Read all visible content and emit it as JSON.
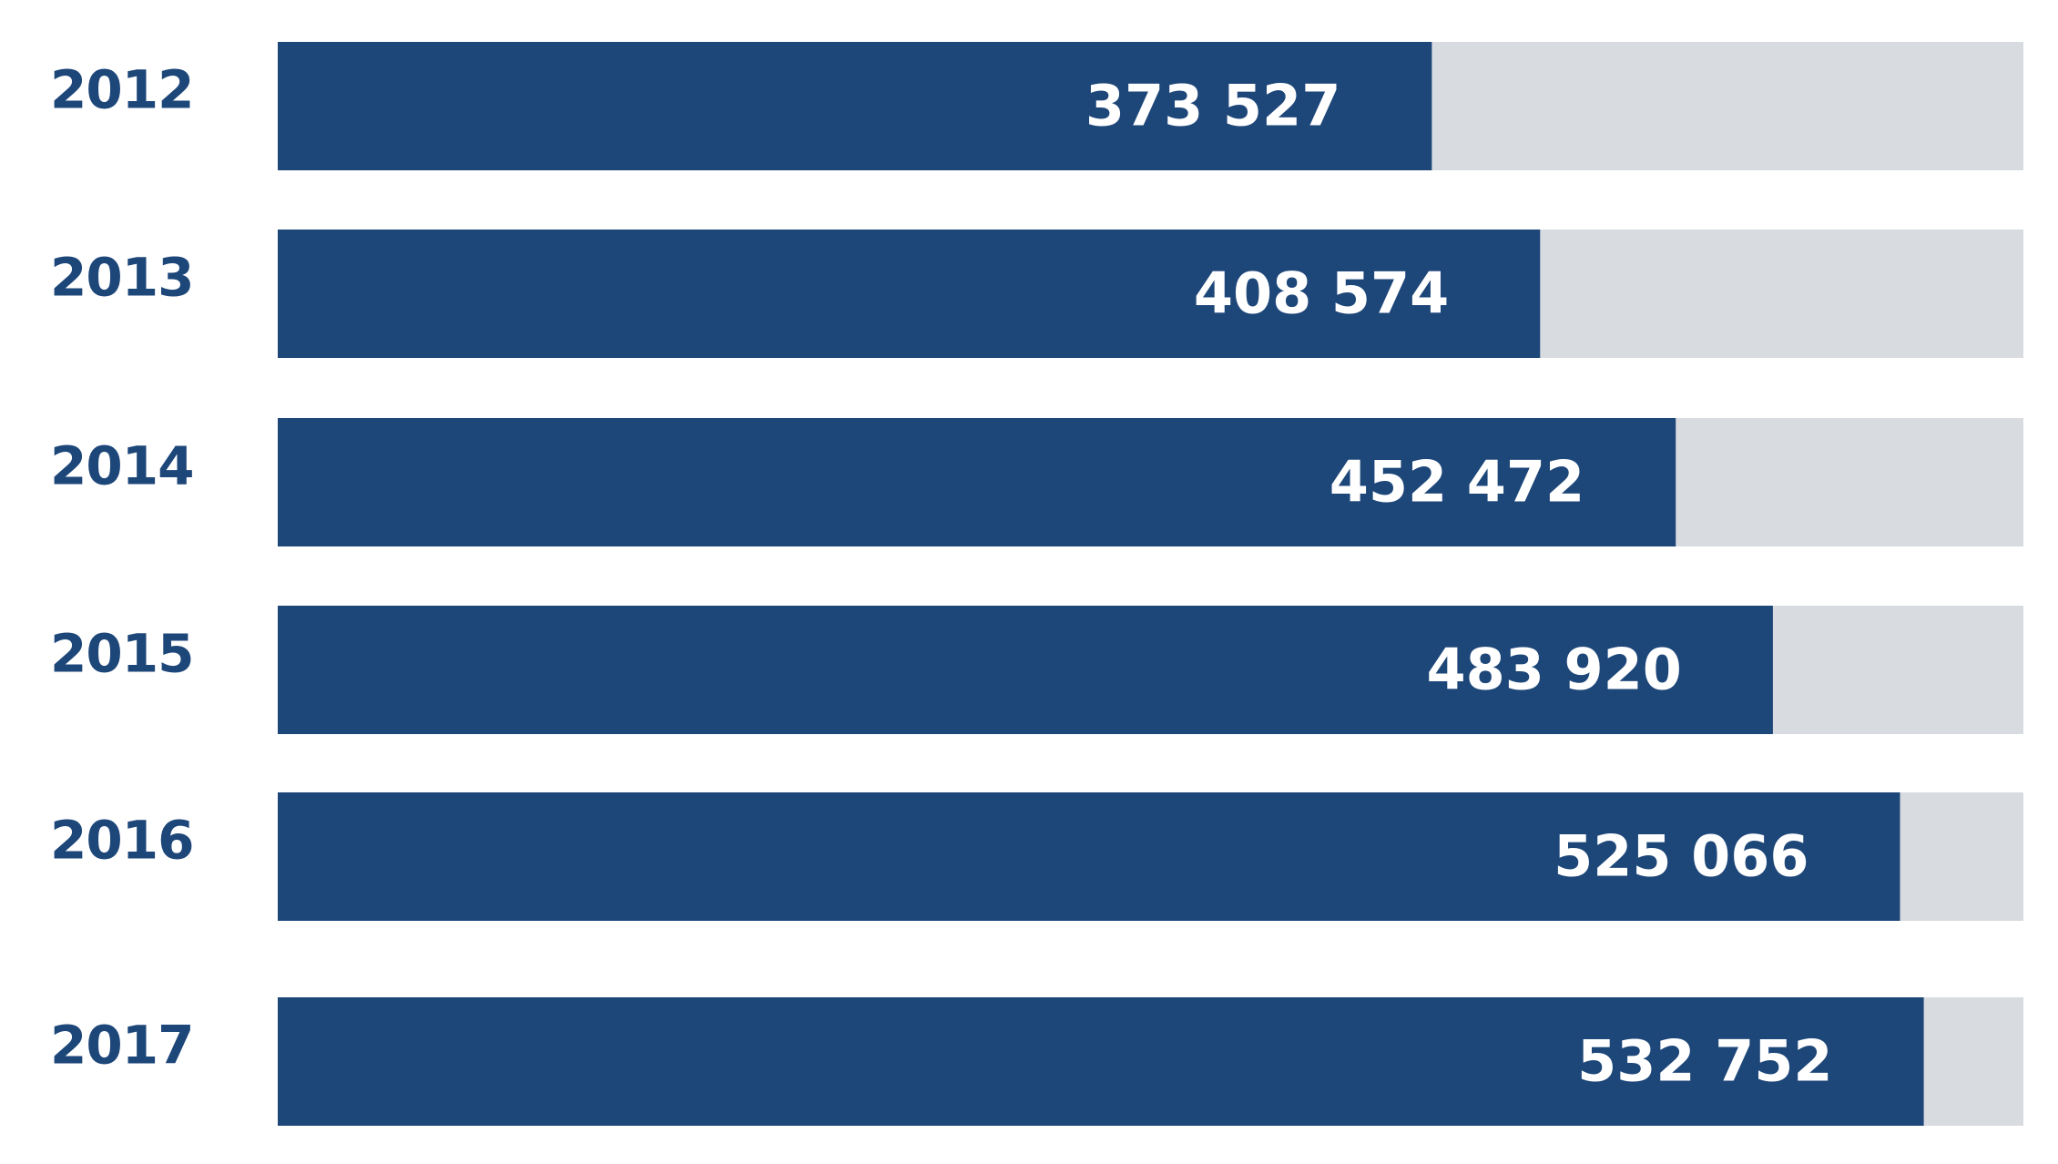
{
  "colors": {
    "bar": "#1d4679",
    "track": "#d8dbdf",
    "year_text": "#1d4679",
    "value_text": "#ffffff",
    "background": "#ffffff"
  },
  "chart_data": {
    "type": "bar",
    "orientation": "horizontal",
    "title": "",
    "xlabel": "",
    "ylabel": "",
    "categories": [
      "2012",
      "2013",
      "2014",
      "2015",
      "2016",
      "2017"
    ],
    "values": [
      373527,
      408574,
      452472,
      483920,
      525066,
      532752
    ],
    "value_labels": [
      "373 527",
      "408 574",
      "452 472",
      "483 920",
      "525 066",
      "532 752"
    ],
    "xlim": [
      0,
      565000
    ],
    "grid": false,
    "legend": "none"
  }
}
